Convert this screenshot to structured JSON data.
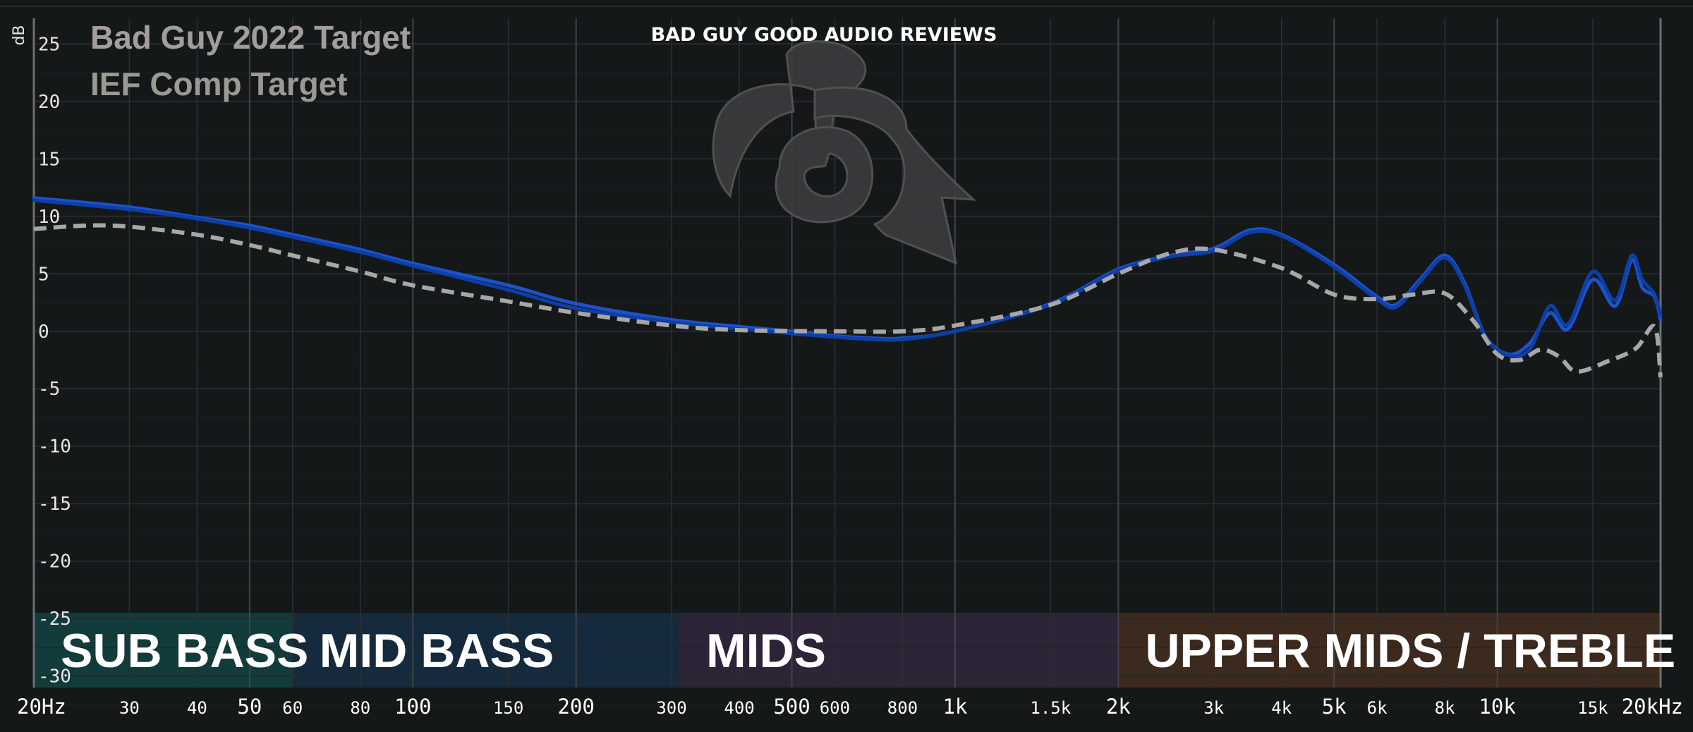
{
  "chart_data": {
    "type": "line",
    "title": "",
    "brand_text": "BAD GUY GOOD AUDIO REVIEWS",
    "ylabel": "dB",
    "xlabel": "",
    "x_scale": "log",
    "xlim": [
      20,
      20000
    ],
    "ylim": [
      -31,
      26
    ],
    "grid": true,
    "legend_position": "top-left",
    "y_ticks": [
      25,
      20,
      15,
      10,
      5,
      0,
      -5,
      -10,
      -15,
      -20,
      -25,
      -30
    ],
    "x_ticks": [
      {
        "value": 20,
        "label": "20Hz",
        "major": true
      },
      {
        "value": 30,
        "label": "30",
        "major": false
      },
      {
        "value": 40,
        "label": "40",
        "major": false
      },
      {
        "value": 50,
        "label": "50",
        "major": true
      },
      {
        "value": 60,
        "label": "60",
        "major": false
      },
      {
        "value": 80,
        "label": "80",
        "major": false
      },
      {
        "value": 100,
        "label": "100",
        "major": true
      },
      {
        "value": 150,
        "label": "150",
        "major": false
      },
      {
        "value": 200,
        "label": "200",
        "major": true
      },
      {
        "value": 300,
        "label": "300",
        "major": false
      },
      {
        "value": 400,
        "label": "400",
        "major": false
      },
      {
        "value": 500,
        "label": "500",
        "major": true
      },
      {
        "value": 600,
        "label": "600",
        "major": false
      },
      {
        "value": 800,
        "label": "800",
        "major": false
      },
      {
        "value": 1000,
        "label": "1k",
        "major": true
      },
      {
        "value": 1500,
        "label": "1.5k",
        "major": false
      },
      {
        "value": 2000,
        "label": "2k",
        "major": true
      },
      {
        "value": 3000,
        "label": "3k",
        "major": false
      },
      {
        "value": 4000,
        "label": "4k",
        "major": false
      },
      {
        "value": 5000,
        "label": "5k",
        "major": true
      },
      {
        "value": 6000,
        "label": "6k",
        "major": false
      },
      {
        "value": 8000,
        "label": "8k",
        "major": false
      },
      {
        "value": 10000,
        "label": "10k",
        "major": true
      },
      {
        "value": 15000,
        "label": "15k",
        "major": false
      },
      {
        "value": 20000,
        "label": "20kHz",
        "major": true
      }
    ],
    "legend": [
      {
        "name": "Bad Guy 2022 Target",
        "color": "#a29d9e"
      },
      {
        "name": "IEF Comp Target",
        "color": "#9a9a93"
      }
    ],
    "bands": [
      {
        "label": "SUB BASS",
        "from": 20,
        "to": 60,
        "color": "#123b3b"
      },
      {
        "label": "MID BASS",
        "from": 60,
        "to": 310,
        "color": "#152a3d"
      },
      {
        "label": "MIDS",
        "from": 310,
        "to": 2000,
        "color": "#2d2438"
      },
      {
        "label": "UPPER MIDS / TREBLE",
        "from": 2000,
        "to": 20000,
        "color": "#3b2a1d"
      }
    ],
    "band_range_db": [
      -31,
      -24.5
    ],
    "series": [
      {
        "role": "measurement-left",
        "color": "#1f52c8",
        "points": [
          [
            20,
            11.6
          ],
          [
            30,
            10.8
          ],
          [
            40,
            9.9
          ],
          [
            50,
            9.2
          ],
          [
            60,
            8.4
          ],
          [
            80,
            7.1
          ],
          [
            100,
            5.9
          ],
          [
            150,
            4.0
          ],
          [
            200,
            2.4
          ],
          [
            300,
            1.0
          ],
          [
            400,
            0.4
          ],
          [
            500,
            0.0
          ],
          [
            600,
            -0.4
          ],
          [
            700,
            -0.6
          ],
          [
            800,
            -0.6
          ],
          [
            1000,
            0.0
          ],
          [
            1500,
            2.4
          ],
          [
            2000,
            5.4
          ],
          [
            2500,
            6.6
          ],
          [
            3000,
            7.2
          ],
          [
            3500,
            8.8
          ],
          [
            4000,
            8.4
          ],
          [
            5000,
            5.8
          ],
          [
            6000,
            3.0
          ],
          [
            6500,
            2.3
          ],
          [
            7200,
            4.5
          ],
          [
            8000,
            6.6
          ],
          [
            8700,
            4.2
          ],
          [
            9500,
            -0.4
          ],
          [
            10500,
            -2.0
          ],
          [
            11500,
            -1.0
          ],
          [
            12500,
            1.6
          ],
          [
            13500,
            0.2
          ],
          [
            15000,
            4.5
          ],
          [
            16500,
            2.2
          ],
          [
            17700,
            6.2
          ],
          [
            18500,
            3.8
          ],
          [
            19500,
            3.0
          ],
          [
            20000,
            1.0
          ]
        ]
      },
      {
        "role": "measurement-right",
        "color": "#0c3fa8",
        "points": [
          [
            20,
            11.4
          ],
          [
            30,
            10.6
          ],
          [
            40,
            9.8
          ],
          [
            50,
            9.0
          ],
          [
            60,
            8.2
          ],
          [
            80,
            6.9
          ],
          [
            100,
            5.7
          ],
          [
            150,
            3.6
          ],
          [
            200,
            2.0
          ],
          [
            300,
            0.8
          ],
          [
            400,
            0.2
          ],
          [
            500,
            -0.2
          ],
          [
            600,
            -0.5
          ],
          [
            700,
            -0.7
          ],
          [
            800,
            -0.7
          ],
          [
            1000,
            0.0
          ],
          [
            1500,
            2.3
          ],
          [
            2000,
            5.3
          ],
          [
            2500,
            6.5
          ],
          [
            3000,
            7.0
          ],
          [
            3500,
            8.6
          ],
          [
            4000,
            8.3
          ],
          [
            5000,
            5.6
          ],
          [
            6000,
            2.8
          ],
          [
            6500,
            2.1
          ],
          [
            7200,
            4.3
          ],
          [
            8000,
            6.4
          ],
          [
            8700,
            4.0
          ],
          [
            9500,
            -0.5
          ],
          [
            10500,
            -2.1
          ],
          [
            11500,
            -1.5
          ],
          [
            12500,
            2.2
          ],
          [
            13500,
            0.6
          ],
          [
            15000,
            5.2
          ],
          [
            16500,
            2.7
          ],
          [
            17700,
            6.6
          ],
          [
            18500,
            4.5
          ],
          [
            19500,
            3.2
          ],
          [
            20000,
            1.4
          ]
        ]
      },
      {
        "role": "target",
        "color": "#a9a6a7",
        "dashed": true,
        "points": [
          [
            20,
            8.9
          ],
          [
            25,
            9.2
          ],
          [
            30,
            9.1
          ],
          [
            40,
            8.4
          ],
          [
            50,
            7.5
          ],
          [
            60,
            6.6
          ],
          [
            80,
            5.2
          ],
          [
            100,
            4.0
          ],
          [
            150,
            2.6
          ],
          [
            200,
            1.6
          ],
          [
            300,
            0.5
          ],
          [
            400,
            0.1
          ],
          [
            600,
            0.0
          ],
          [
            800,
            0.0
          ],
          [
            1000,
            0.5
          ],
          [
            1500,
            2.3
          ],
          [
            2000,
            5.0
          ],
          [
            2500,
            6.8
          ],
          [
            3000,
            7.1
          ],
          [
            4000,
            5.5
          ],
          [
            5000,
            3.2
          ],
          [
            6000,
            2.8
          ],
          [
            7000,
            3.2
          ],
          [
            8000,
            3.3
          ],
          [
            9000,
            1.0
          ],
          [
            10000,
            -2.0
          ],
          [
            11000,
            -2.5
          ],
          [
            12000,
            -1.6
          ],
          [
            13000,
            -2.2
          ],
          [
            14000,
            -3.5
          ],
          [
            16000,
            -2.6
          ],
          [
            18000,
            -1.5
          ],
          [
            19500,
            0.4
          ],
          [
            20000,
            -4.0
          ]
        ]
      }
    ]
  }
}
